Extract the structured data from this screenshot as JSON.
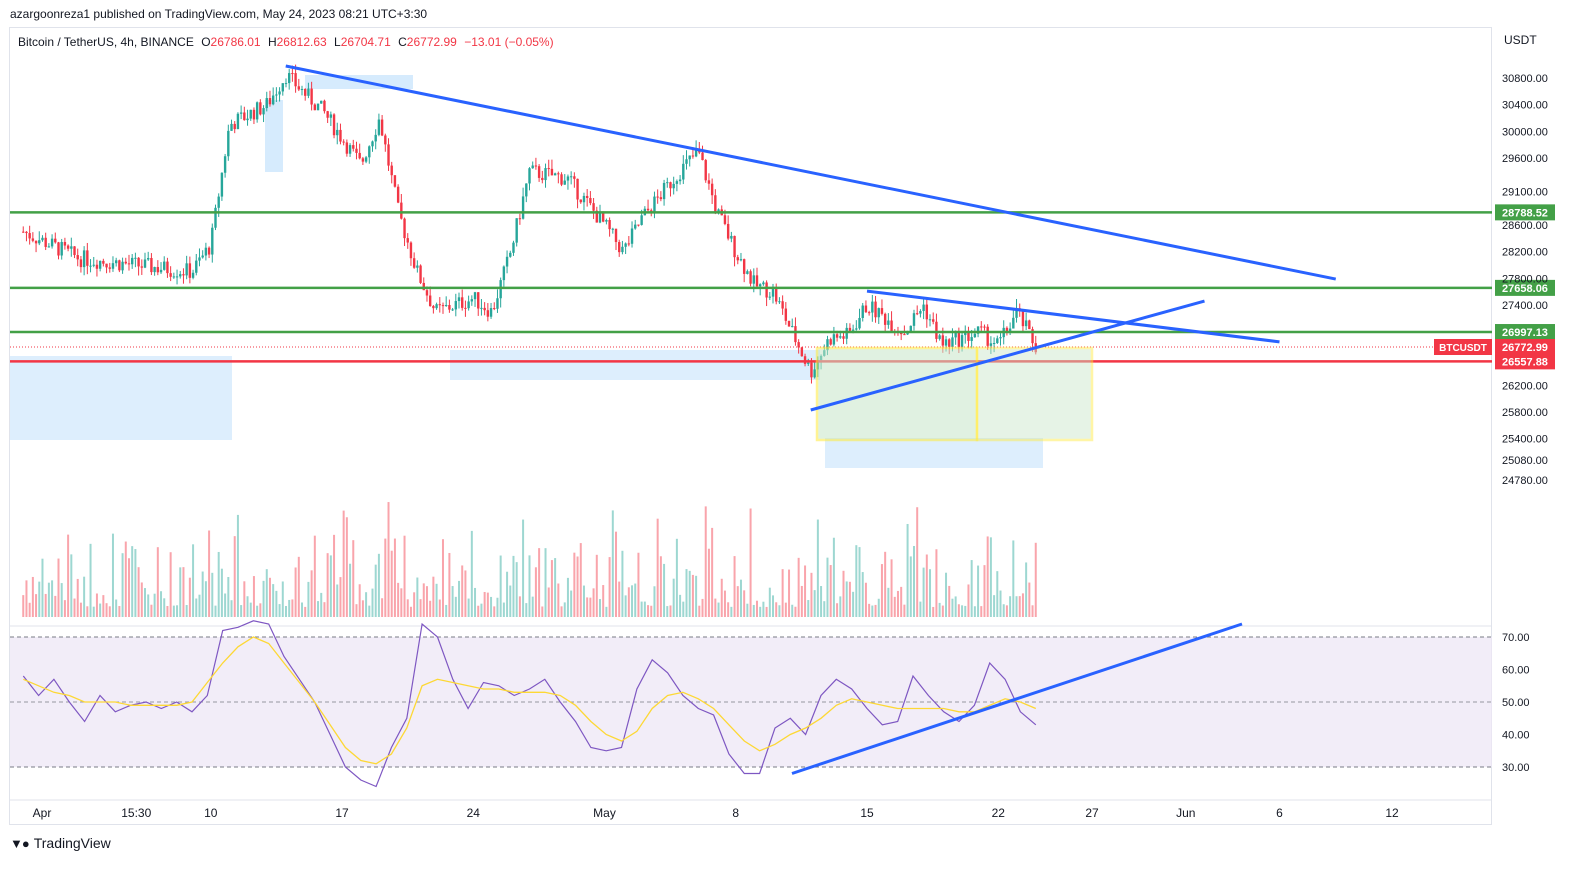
{
  "header": {
    "published": "azargoonreza1 published on TradingView.com, May 24, 2023 08:21 UTC+3:30",
    "symbol": "Bitcoin / TetherUS, 4h, BINANCE",
    "ohlc": [
      {
        "k": "O",
        "v": "26786.01"
      },
      {
        "k": "H",
        "v": "26812.63"
      },
      {
        "k": "L",
        "v": "26704.71"
      },
      {
        "k": "C",
        "v": "26772.99"
      }
    ],
    "change": "−13.01 (−0.05%)",
    "currency": "USDT"
  },
  "footer": {
    "brand": "TradingView"
  },
  "colors": {
    "up": "#26a69a",
    "down": "#f23645",
    "trendline": "#2962ff",
    "level_green": "#43a047",
    "level_red": "#f23645",
    "rsi": "#7e57c2",
    "rsi_ma": "#fdd835",
    "rect_yellow": "#ffeb3b"
  },
  "chart_data": [
    {
      "type": "candlestick",
      "symbol": "BTCUSDT",
      "timeframe": "4h",
      "x_ticks": [
        "Apr",
        "15:30",
        "10",
        "17",
        "24",
        "May",
        "8",
        "15",
        "22",
        "27",
        "Jun",
        "6",
        "12"
      ],
      "y_ticks": [
        "30800.00",
        "30400.00",
        "30000.00",
        "29600.00",
        "29100.00",
        "28600.00",
        "28200.00",
        "27800.00",
        "27400.00",
        "26200.00",
        "25800.00",
        "25400.00",
        "25080.00",
        "24780.00"
      ],
      "ylim": [
        24700,
        31000
      ],
      "horizontal_levels": [
        {
          "value": 28788.52,
          "label": "28788.52",
          "color": "green"
        },
        {
          "value": 27658.06,
          "label": "27658.06",
          "color": "green"
        },
        {
          "value": 26997.13,
          "label": "26997.13",
          "color": "green"
        },
        {
          "value": 26557.88,
          "label": "26557.88",
          "color": "red"
        }
      ],
      "last_price": {
        "value": 26772.99,
        "label": "26772.99",
        "tag": "BTCUSDT"
      },
      "price_path": [
        {
          "x": "Mar 31",
          "y": 28500
        },
        {
          "x": "Apr 3",
          "y": 28100
        },
        {
          "x": "Apr 6",
          "y": 28000
        },
        {
          "x": "Apr 9",
          "y": 27900
        },
        {
          "x": "Apr 10",
          "y": 28300
        },
        {
          "x": "Apr 11",
          "y": 30100
        },
        {
          "x": "Apr 13",
          "y": 30400
        },
        {
          "x": "Apr 14",
          "y": 30850
        },
        {
          "x": "Apr 16",
          "y": 30300
        },
        {
          "x": "Apr 18",
          "y": 29500
        },
        {
          "x": "Apr 19",
          "y": 30200
        },
        {
          "x": "Apr 20",
          "y": 28800
        },
        {
          "x": "Apr 21",
          "y": 27900
        },
        {
          "x": "Apr 22",
          "y": 27300
        },
        {
          "x": "Apr 24",
          "y": 27500
        },
        {
          "x": "Apr 25",
          "y": 27300
        },
        {
          "x": "Apr 26",
          "y": 28200
        },
        {
          "x": "Apr 27",
          "y": 29400
        },
        {
          "x": "Apr 29",
          "y": 29300
        },
        {
          "x": "May 1",
          "y": 28600
        },
        {
          "x": "May 2",
          "y": 28200
        },
        {
          "x": "May 3",
          "y": 28700
        },
        {
          "x": "May 5",
          "y": 29400
        },
        {
          "x": "May 6",
          "y": 29700
        },
        {
          "x": "May 7",
          "y": 28800
        },
        {
          "x": "May 8",
          "y": 28200
        },
        {
          "x": "May 9",
          "y": 27700
        },
        {
          "x": "May 10",
          "y": 27600
        },
        {
          "x": "May 11",
          "y": 27000
        },
        {
          "x": "May 12",
          "y": 26400
        },
        {
          "x": "May 13",
          "y": 26900
        },
        {
          "x": "May 14",
          "y": 26950
        },
        {
          "x": "May 15",
          "y": 27400
        },
        {
          "x": "May 16",
          "y": 27200
        },
        {
          "x": "May 17",
          "y": 27000
        },
        {
          "x": "May 18",
          "y": 27400
        },
        {
          "x": "May 19",
          "y": 26800
        },
        {
          "x": "May 20",
          "y": 26900
        },
        {
          "x": "May 21",
          "y": 27000
        },
        {
          "x": "May 22",
          "y": 26800
        },
        {
          "x": "May 23",
          "y": 27300
        },
        {
          "x": "May 24",
          "y": 26773
        }
      ],
      "trendlines": [
        {
          "from": {
            "x": "Apr 14",
            "y": 30980
          },
          "to": {
            "x": "Jun 9",
            "y": 27790
          }
        },
        {
          "from": {
            "x": "May 12",
            "y": 25830
          },
          "to": {
            "x": "Jun 2",
            "y": 27460
          }
        },
        {
          "from": {
            "x": "May 15",
            "y": 27610
          },
          "to": {
            "x": "Jun 6",
            "y": 26850
          }
        }
      ]
    },
    {
      "type": "line",
      "name": "RSI",
      "y_ticks": [
        "70.00",
        "60.00",
        "50.00",
        "40.00",
        "30.00"
      ],
      "ylim": [
        20,
        75
      ],
      "bands": [
        30,
        70
      ],
      "series": [
        {
          "values": [
            58,
            52,
            57,
            50,
            44,
            52,
            47,
            49,
            50,
            48,
            50,
            47,
            52,
            72,
            73,
            75,
            74,
            64,
            57,
            50,
            40,
            30,
            26,
            24,
            36,
            45,
            74,
            70,
            57,
            48,
            56,
            55,
            52,
            54,
            57,
            50,
            44,
            36,
            35,
            36,
            54,
            63,
            59,
            52,
            48,
            46,
            34,
            28,
            28,
            42,
            45,
            40,
            52,
            57,
            54,
            48,
            43,
            44,
            58,
            52,
            47,
            44,
            49,
            62,
            57,
            47,
            43
          ]
        },
        {
          "values": [
            57,
            55,
            53,
            52,
            50,
            50,
            50,
            49,
            49,
            49,
            49,
            50,
            56,
            62,
            67,
            70,
            68,
            62,
            56,
            50,
            43,
            36,
            32,
            31,
            34,
            42,
            55,
            57,
            56,
            55,
            54,
            54,
            53,
            53,
            53,
            52,
            49,
            44,
            40,
            38,
            41,
            48,
            52,
            53,
            51,
            48,
            43,
            38,
            35,
            37,
            40,
            42,
            45,
            49,
            51,
            50,
            49,
            48,
            48,
            48,
            48,
            47,
            47,
            49,
            51,
            50,
            48
          ]
        }
      ],
      "trendline": {
        "from": {
          "x": "May 11",
          "y": 28
        },
        "to": {
          "x": "Jun 4",
          "y": 74
        }
      }
    }
  ]
}
